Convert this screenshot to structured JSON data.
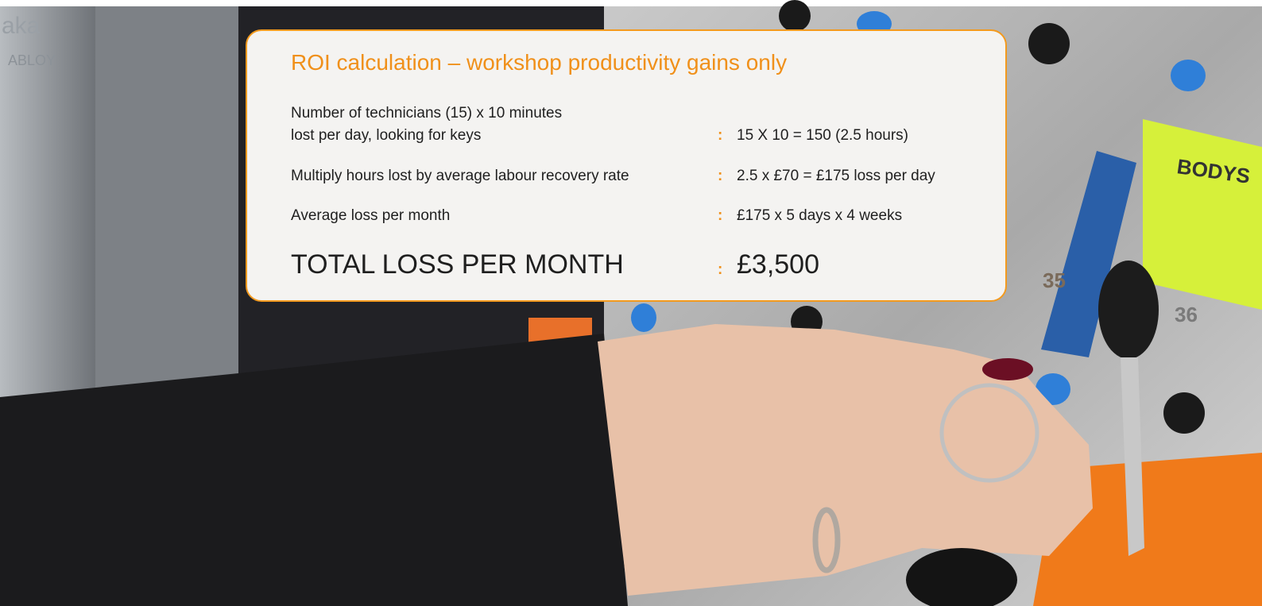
{
  "card": {
    "title": "ROI calculation – workshop productivity gains only",
    "separator": ":",
    "rows": [
      {
        "label": [
          "Number of technicians (15) x 10 minutes",
          "lost per day, looking for keys"
        ],
        "value": "15 X 10 = 150 (2.5 hours)"
      },
      {
        "label": [
          "Multiply hours lost by average labour recovery rate"
        ],
        "value": "2.5 x £70 = £175 loss per day"
      },
      {
        "label": [
          "Average loss per month"
        ],
        "value": "£175 x 5 days x 4 weeks"
      }
    ],
    "total": {
      "label": "TOTAL LOSS PER MONTH",
      "value": "£3,500"
    }
  },
  "photo": {
    "labels": [
      "aka",
      "ABLOY",
      "BODYS",
      "35",
      "36"
    ]
  }
}
